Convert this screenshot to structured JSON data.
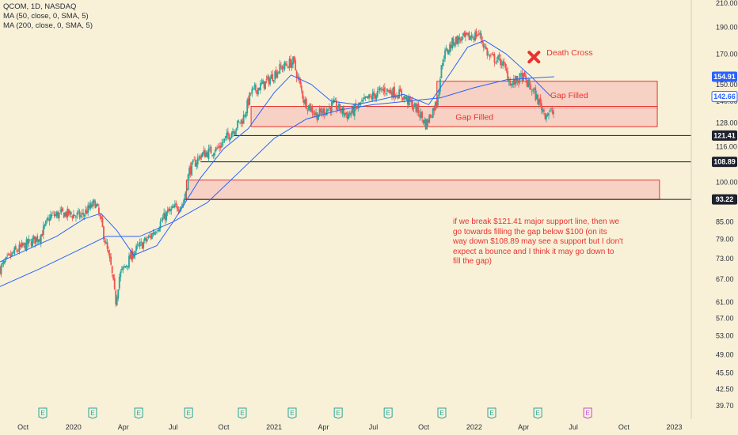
{
  "legend": {
    "symbol_line": "QCOM, 1D, NASDAQ",
    "ma50_line": "MA (50, close, 0, SMA, 5)",
    "ma200_line": "MA (200, close, 0, SMA, 5)"
  },
  "annotation": {
    "note": "if we break $121.41 major support line, then we go towards filling the gap below $100 (on its way down $108.89 may see a support but I don't expect a bounce and I think it may go down to fill the gap)"
  },
  "colors": {
    "background": "#f8f1d8",
    "up_candle": "#26a69a",
    "down_candle": "#ef5350",
    "ma_line": "#2962ff",
    "zone_fill": "#f7c6bd",
    "zone_stroke": "#e8332f",
    "annotation_text": "#e8332f",
    "earnings_badge": "#26a69a",
    "earnings_badge_future": "#c34adb"
  },
  "chart_data": {
    "type": "candlestick",
    "symbol": "QCOM",
    "interval": "1D",
    "exchange": "NASDAQ",
    "y_scale": "log",
    "ylim": [
      39.7,
      210
    ],
    "y_ticks": [
      "210.00",
      "190.00",
      "170.00",
      "150.00",
      "140.00",
      "128.00",
      "116.00",
      "100.00",
      "85.00",
      "79.00",
      "73.00",
      "67.00",
      "61.00",
      "57.00",
      "53.00",
      "49.00",
      "45.50",
      "42.50",
      "39.70"
    ],
    "x_ticks": [
      "Oct",
      "2020",
      "Apr",
      "Jul",
      "Oct",
      "2021",
      "Apr",
      "Jul",
      "Oct",
      "2022",
      "Apr",
      "Jul",
      "Oct",
      "2023"
    ],
    "x_tick_dates": [
      "2019-10-01",
      "2020-01-01",
      "2020-04-01",
      "2020-07-01",
      "2020-10-01",
      "2021-01-01",
      "2021-04-01",
      "2021-07-01",
      "2021-10-01",
      "2022-01-01",
      "2022-04-01",
      "2022-07-01",
      "2022-10-01",
      "2023-01-01"
    ],
    "x_range": [
      "2019-08-20",
      "2023-02-01"
    ],
    "price_path": [
      {
        "date": "2019-08-20",
        "close": 70
      },
      {
        "date": "2019-09-15",
        "close": 75
      },
      {
        "date": "2019-11-01",
        "close": 80
      },
      {
        "date": "2019-11-20",
        "close": 87
      },
      {
        "date": "2019-12-15",
        "close": 88
      },
      {
        "date": "2020-01-15",
        "close": 87
      },
      {
        "date": "2020-02-10",
        "close": 92
      },
      {
        "date": "2020-02-20",
        "close": 85
      },
      {
        "date": "2020-03-10",
        "close": 70
      },
      {
        "date": "2020-03-18",
        "close": 61
      },
      {
        "date": "2020-03-25",
        "close": 68
      },
      {
        "date": "2020-04-20",
        "close": 75
      },
      {
        "date": "2020-05-20",
        "close": 80
      },
      {
        "date": "2020-06-20",
        "close": 88
      },
      {
        "date": "2020-07-20",
        "close": 92
      },
      {
        "date": "2020-07-30",
        "close": 105
      },
      {
        "date": "2020-08-20",
        "close": 112
      },
      {
        "date": "2020-09-20",
        "close": 115
      },
      {
        "date": "2020-10-20",
        "close": 125
      },
      {
        "date": "2020-11-05",
        "close": 130
      },
      {
        "date": "2020-11-20",
        "close": 145
      },
      {
        "date": "2020-12-20",
        "close": 152
      },
      {
        "date": "2021-01-10",
        "close": 160
      },
      {
        "date": "2021-02-05",
        "close": 165
      },
      {
        "date": "2021-02-25",
        "close": 140
      },
      {
        "date": "2021-03-20",
        "close": 132
      },
      {
        "date": "2021-04-20",
        "close": 138
      },
      {
        "date": "2021-05-15",
        "close": 132
      },
      {
        "date": "2021-06-20",
        "close": 141
      },
      {
        "date": "2021-07-20",
        "close": 147
      },
      {
        "date": "2021-08-20",
        "close": 144
      },
      {
        "date": "2021-09-20",
        "close": 135
      },
      {
        "date": "2021-10-05",
        "close": 127
      },
      {
        "date": "2021-10-25",
        "close": 140
      },
      {
        "date": "2021-11-05",
        "close": 168
      },
      {
        "date": "2021-11-25",
        "close": 180
      },
      {
        "date": "2021-12-20",
        "close": 182
      },
      {
        "date": "2022-01-10",
        "close": 185
      },
      {
        "date": "2022-01-28",
        "close": 168
      },
      {
        "date": "2022-02-20",
        "close": 165
      },
      {
        "date": "2022-03-10",
        "close": 150
      },
      {
        "date": "2022-03-30",
        "close": 155
      },
      {
        "date": "2022-04-20",
        "close": 145
      },
      {
        "date": "2022-05-10",
        "close": 133
      },
      {
        "date": "2022-05-27",
        "close": 134
      }
    ],
    "ma50_path": [
      {
        "date": "2019-08-20",
        "close": 72
      },
      {
        "date": "2019-12-01",
        "close": 80
      },
      {
        "date": "2020-01-20",
        "close": 86
      },
      {
        "date": "2020-02-20",
        "close": 88
      },
      {
        "date": "2020-03-20",
        "close": 82
      },
      {
        "date": "2020-04-20",
        "close": 74
      },
      {
        "date": "2020-06-01",
        "close": 77
      },
      {
        "date": "2020-07-01",
        "close": 85
      },
      {
        "date": "2020-08-20",
        "close": 102
      },
      {
        "date": "2020-10-01",
        "close": 115
      },
      {
        "date": "2020-11-15",
        "close": 125
      },
      {
        "date": "2021-01-01",
        "close": 145
      },
      {
        "date": "2021-02-01",
        "close": 156
      },
      {
        "date": "2021-03-10",
        "close": 150
      },
      {
        "date": "2021-04-15",
        "close": 140
      },
      {
        "date": "2021-06-01",
        "close": 138
      },
      {
        "date": "2021-07-15",
        "close": 141
      },
      {
        "date": "2021-08-25",
        "close": 144
      },
      {
        "date": "2021-10-10",
        "close": 138
      },
      {
        "date": "2021-11-20",
        "close": 158
      },
      {
        "date": "2021-12-20",
        "close": 175
      },
      {
        "date": "2022-01-20",
        "close": 180
      },
      {
        "date": "2022-03-01",
        "close": 170
      },
      {
        "date": "2022-04-15",
        "close": 155
      },
      {
        "date": "2022-05-20",
        "close": 143
      }
    ],
    "ma200_path": [
      {
        "date": "2019-08-20",
        "close": 65
      },
      {
        "date": "2019-11-01",
        "close": 70
      },
      {
        "date": "2020-01-15",
        "close": 76
      },
      {
        "date": "2020-03-01",
        "close": 80
      },
      {
        "date": "2020-05-01",
        "close": 80
      },
      {
        "date": "2020-07-01",
        "close": 85
      },
      {
        "date": "2020-09-01",
        "close": 92
      },
      {
        "date": "2020-11-01",
        "close": 105
      },
      {
        "date": "2021-01-01",
        "close": 120
      },
      {
        "date": "2021-03-01",
        "close": 130
      },
      {
        "date": "2021-05-01",
        "close": 135
      },
      {
        "date": "2021-07-01",
        "close": 138
      },
      {
        "date": "2021-09-01",
        "close": 140
      },
      {
        "date": "2021-11-01",
        "close": 142
      },
      {
        "date": "2022-01-01",
        "close": 148
      },
      {
        "date": "2022-03-01",
        "close": 153
      },
      {
        "date": "2022-05-27",
        "close": 154.91
      }
    ],
    "price_badges": [
      {
        "value": 154.91,
        "label": "154.91",
        "style": "ma"
      },
      {
        "value": 142.66,
        "label": "142.66",
        "style": "ma-light"
      },
      {
        "value": 121.41,
        "label": "121.41",
        "style": "level"
      },
      {
        "value": 108.89,
        "label": "108.89",
        "style": "level"
      },
      {
        "value": 93.22,
        "label": "93.22",
        "style": "level"
      }
    ],
    "support_lines": [
      {
        "value": 121.41,
        "start": "2020-10-20"
      },
      {
        "value": 108.89,
        "start": "2020-08-20"
      },
      {
        "value": 93.22,
        "start": "2020-07-20"
      }
    ],
    "zones": [
      {
        "label": "Gap Filled",
        "top": 152,
        "bottom": 136,
        "start": "2021-10-25",
        "end": "2022-12-01"
      },
      {
        "label": "Gap Filled",
        "top": 137,
        "bottom": 126,
        "start": "2020-11-20",
        "end": "2022-12-01"
      },
      {
        "label": "",
        "top": 101,
        "bottom": 93.22,
        "start": "2020-07-25",
        "end": "2022-12-05"
      }
    ],
    "markers": [
      {
        "label": "Death Cross",
        "date": "2022-04-20",
        "value": 168
      }
    ],
    "earnings_events": [
      {
        "label": "E",
        "date": "2019-11-06",
        "future": false
      },
      {
        "label": "E",
        "date": "2020-02-05",
        "future": false
      },
      {
        "label": "E",
        "date": "2020-04-29",
        "future": false
      },
      {
        "label": "E",
        "date": "2020-07-29",
        "future": false
      },
      {
        "label": "E",
        "date": "2020-11-04",
        "future": false
      },
      {
        "label": "E",
        "date": "2021-02-03",
        "future": false
      },
      {
        "label": "E",
        "date": "2021-04-28",
        "future": false
      },
      {
        "label": "E",
        "date": "2021-07-28",
        "future": false
      },
      {
        "label": "E",
        "date": "2021-11-03",
        "future": false
      },
      {
        "label": "E",
        "date": "2022-02-02",
        "future": false
      },
      {
        "label": "E",
        "date": "2022-04-27",
        "future": false
      },
      {
        "label": "E",
        "date": "2022-07-27",
        "future": true
      }
    ]
  }
}
